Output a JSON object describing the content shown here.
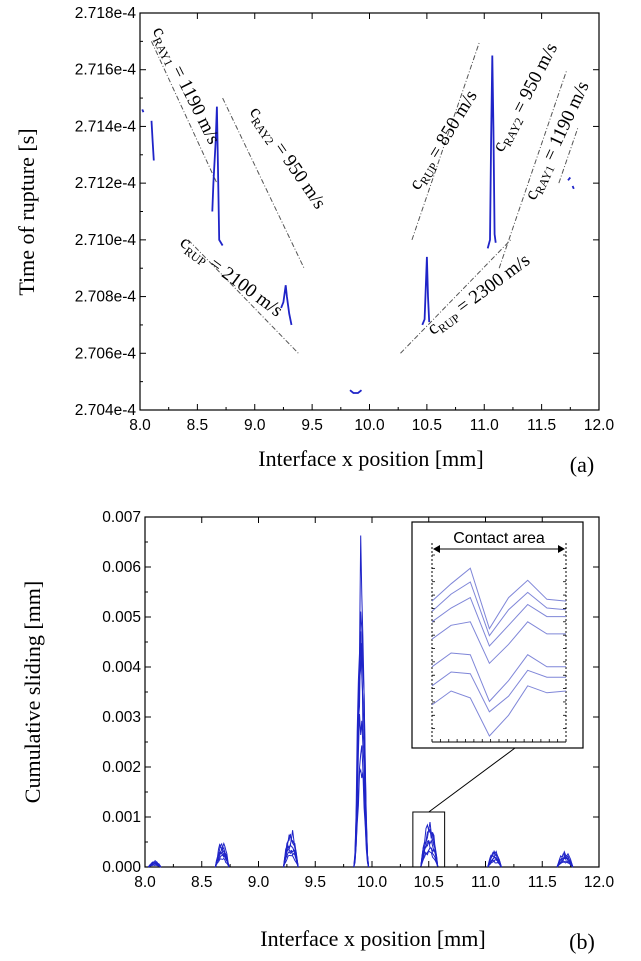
{
  "colors": {
    "series": "#1f24c8",
    "inset_series": "#7f86d8",
    "axis": "#000000",
    "guide": "#555555"
  },
  "chart_data": [
    {
      "id": "a",
      "type": "scatter",
      "panel_label": "(a)",
      "xlabel": "Interface x position [mm]",
      "ylabel": "Time of rupture [s]",
      "xlim": [
        8.0,
        12.0
      ],
      "ylim": [
        0.0002704,
        0.0002718
      ],
      "xticks": [
        8.0,
        8.5,
        9.0,
        9.5,
        10.0,
        10.5,
        11.0,
        11.5,
        12.0
      ],
      "xtick_labels": [
        "8.0",
        "8.5",
        "9.0",
        "9.5",
        "10.0",
        "10.5",
        "11.0",
        "11.5",
        "12.0"
      ],
      "yticks": [
        0.0002704,
        0.0002706,
        0.0002708,
        0.000271,
        0.0002712,
        0.0002714,
        0.0002716,
        0.0002718
      ],
      "ytick_labels": [
        "2.704e-4",
        "2.706e-4",
        "2.708e-4",
        "2.710e-4",
        "2.712e-4",
        "2.714e-4",
        "2.716e-4",
        "2.718e-4"
      ],
      "series": [
        {
          "segments": [
            [
              [
                8.02,
                0.00027146
              ],
              [
                8.03,
                0.00027145
              ]
            ],
            [
              [
                8.1,
                0.00027142
              ],
              [
                8.11,
                0.00027135
              ],
              [
                8.12,
                0.00027128
              ]
            ],
            [
              [
                8.63,
                0.0002711
              ],
              [
                8.64,
                0.0002712
              ],
              [
                8.66,
                0.00027135
              ],
              [
                8.67,
                0.00027147
              ],
              [
                8.68,
                0.00027125
              ],
              [
                8.69,
                0.000271
              ],
              [
                8.72,
                0.00027098
              ]
            ],
            [
              [
                9.23,
                0.00027076
              ],
              [
                9.25,
                0.00027078
              ],
              [
                9.27,
                0.00027084
              ],
              [
                9.28,
                0.0002708
              ],
              [
                9.3,
                0.00027074
              ],
              [
                9.32,
                0.0002707
              ]
            ],
            [
              [
                9.83,
                0.00027047
              ],
              [
                9.86,
                0.00027046
              ],
              [
                9.9,
                0.00027046
              ],
              [
                9.93,
                0.00027047
              ]
            ],
            [
              [
                10.46,
                0.0002707
              ],
              [
                10.48,
                0.00027072
              ],
              [
                10.5,
                0.00027094
              ],
              [
                10.51,
                0.0002708
              ],
              [
                10.52,
                0.00027071
              ]
            ],
            [
              [
                11.03,
                0.00027097
              ],
              [
                11.05,
                0.000271
              ],
              [
                11.06,
                0.00027135
              ],
              [
                11.07,
                0.00027165
              ],
              [
                11.08,
                0.0002714
              ],
              [
                11.09,
                0.00027102
              ],
              [
                11.1,
                0.00027099
              ]
            ],
            [
              [
                11.73,
                0.00027121
              ],
              [
                11.75,
                0.00027122
              ]
            ],
            [
              [
                11.77,
                0.00027119
              ],
              [
                11.78,
                0.00027118
              ]
            ]
          ]
        }
      ],
      "annotations": [
        {
          "main": "c",
          "sub": "RAY1",
          "rest": " = 1190 m/s"
        },
        {
          "main": "c",
          "sub": "RAY2",
          "rest": " = 950 m/s"
        },
        {
          "main": "c",
          "sub": "RUP",
          "rest": " = 2100 m/s"
        },
        {
          "main": "c",
          "sub": "RUP",
          "rest": " = 850 m/s"
        },
        {
          "main": "c",
          "sub": "RAY2",
          "rest": " = 950 m/s"
        },
        {
          "main": "c",
          "sub": "RAY1",
          "rest": " = 1190 m/s"
        },
        {
          "main": "c",
          "sub": "RUP",
          "rest": " = 2300 m/s"
        }
      ],
      "guide_lines": [
        [
          [
            8.1,
            0.0002717
          ],
          [
            8.67,
            0.0002712
          ]
        ],
        [
          [
            8.72,
            0.0002715
          ],
          [
            9.43,
            0.0002709
          ]
        ],
        [
          [
            8.42,
            0.000271
          ],
          [
            9.38,
            0.0002706
          ]
        ],
        [
          [
            10.37,
            0.000271
          ],
          [
            10.96,
            0.0002717
          ]
        ],
        [
          [
            11.13,
            0.0002709
          ],
          [
            11.72,
            0.0002716
          ]
        ],
        [
          [
            10.27,
            0.0002706
          ],
          [
            11.23,
            0.000271
          ]
        ],
        [
          [
            11.65,
            0.0002712
          ],
          [
            11.82,
            0.0002714
          ]
        ]
      ]
    },
    {
      "id": "b",
      "type": "line",
      "panel_label": "(b)",
      "xlabel": "Interface x position [mm]",
      "ylabel": "Cumulative sliding [mm]",
      "xlim": [
        8.0,
        12.0
      ],
      "ylim": [
        0,
        0.007
      ],
      "xticks": [
        8.0,
        8.5,
        9.0,
        9.5,
        10.0,
        10.5,
        11.0,
        11.5,
        12.0
      ],
      "xtick_labels": [
        "8.0",
        "8.5",
        "9.0",
        "9.5",
        "10.0",
        "10.5",
        "11.0",
        "11.5",
        "12.0"
      ],
      "yticks": [
        0,
        0.001,
        0.002,
        0.003,
        0.004,
        0.005,
        0.006,
        0.007
      ],
      "ytick_labels": [
        "0.000",
        "0.001",
        "0.002",
        "0.003",
        "0.004",
        "0.005",
        "0.006",
        "0.007"
      ],
      "peaks": [
        {
          "x_min": 8.03,
          "x_max": 8.14,
          "peak": 0.00012
        },
        {
          "x_min": 8.62,
          "x_max": 8.74,
          "peak": 0.0005
        },
        {
          "x_min": 9.22,
          "x_max": 9.35,
          "peak": 0.00072
        },
        {
          "x_min": 9.84,
          "x_max": 9.97,
          "peak": 0.00635
        },
        {
          "x_min": 10.43,
          "x_max": 10.58,
          "peak": 0.0009
        },
        {
          "x_min": 11.02,
          "x_max": 11.14,
          "peak": 0.00032
        },
        {
          "x_min": 11.63,
          "x_max": 11.77,
          "peak": 0.0003
        }
      ],
      "inset": {
        "title": "Contact area",
        "source_x_range": [
          10.36,
          10.64
        ],
        "source_y_range": [
          0,
          0.0011
        ],
        "curves": [
          [
            0.78,
            0.88,
            0.97,
            0.62,
            0.8,
            0.9,
            0.79,
            0.78
          ],
          [
            0.72,
            0.82,
            0.89,
            0.58,
            0.73,
            0.83,
            0.74,
            0.73
          ],
          [
            0.66,
            0.74,
            0.8,
            0.52,
            0.64,
            0.76,
            0.69,
            0.69
          ],
          [
            0.56,
            0.64,
            0.66,
            0.42,
            0.53,
            0.66,
            0.59,
            0.59
          ],
          [
            0.4,
            0.48,
            0.47,
            0.2,
            0.32,
            0.47,
            0.4,
            0.4
          ],
          [
            0.29,
            0.37,
            0.36,
            0.14,
            0.23,
            0.38,
            0.34,
            0.34
          ],
          [
            0.18,
            0.26,
            0.22,
            0.0,
            0.12,
            0.29,
            0.25,
            0.26
          ]
        ]
      }
    }
  ]
}
